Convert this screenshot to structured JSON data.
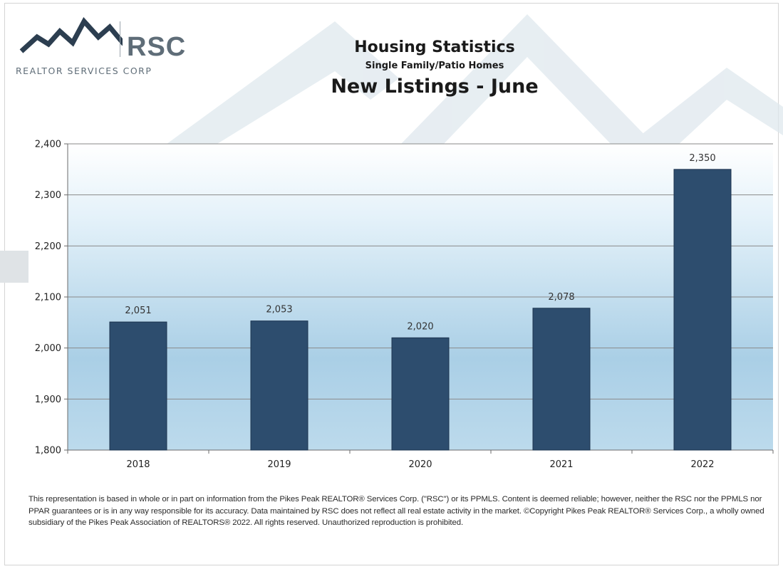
{
  "logo": {
    "name": "RSC",
    "tagline": "REALTOR SERVICES CORP",
    "icon": "mountain-peaks-icon",
    "color": "#5f6d78",
    "accent": "#2c3e50"
  },
  "header": {
    "title": "Housing Statistics",
    "subtitle": "Single Family/Patio Homes",
    "chart_title": "New Listings - June"
  },
  "chart_data": {
    "type": "bar",
    "title": "New Listings - June",
    "categories": [
      "2018",
      "2019",
      "2020",
      "2021",
      "2022"
    ],
    "values": [
      2051,
      2053,
      2020,
      2078,
      2350
    ],
    "data_labels": [
      "2,051",
      "2,053",
      "2,020",
      "2,078",
      "2,350"
    ],
    "xlabel": "",
    "ylabel": "",
    "ylim": [
      1800,
      2400
    ],
    "yticks": [
      1800,
      1900,
      2000,
      2100,
      2200,
      2300,
      2400
    ],
    "ytick_labels": [
      "1,800",
      "1,900",
      "2,000",
      "2,100",
      "2,200",
      "2,300",
      "2,400"
    ],
    "grid": true,
    "legend": "none",
    "bar_color": "#2d4d6e"
  },
  "disclaimer": "This representation is based in whole or in part on information from the Pikes Peak REALTOR® Services Corp. (\"RSC\") or its PPMLS. Content is deemed reliable; however, neither the RSC nor the PPMLS nor PPAR guarantees or is in any way responsible for its accuracy. Data maintained by RSC does not reflect all real estate activity in the market. ©Copyright Pikes Peak REALTOR® Services Corp., a wholly owned subsidiary of the Pikes Peak Association of REALTORS® 2022. All rights reserved. Unauthorized reproduction is prohibited."
}
